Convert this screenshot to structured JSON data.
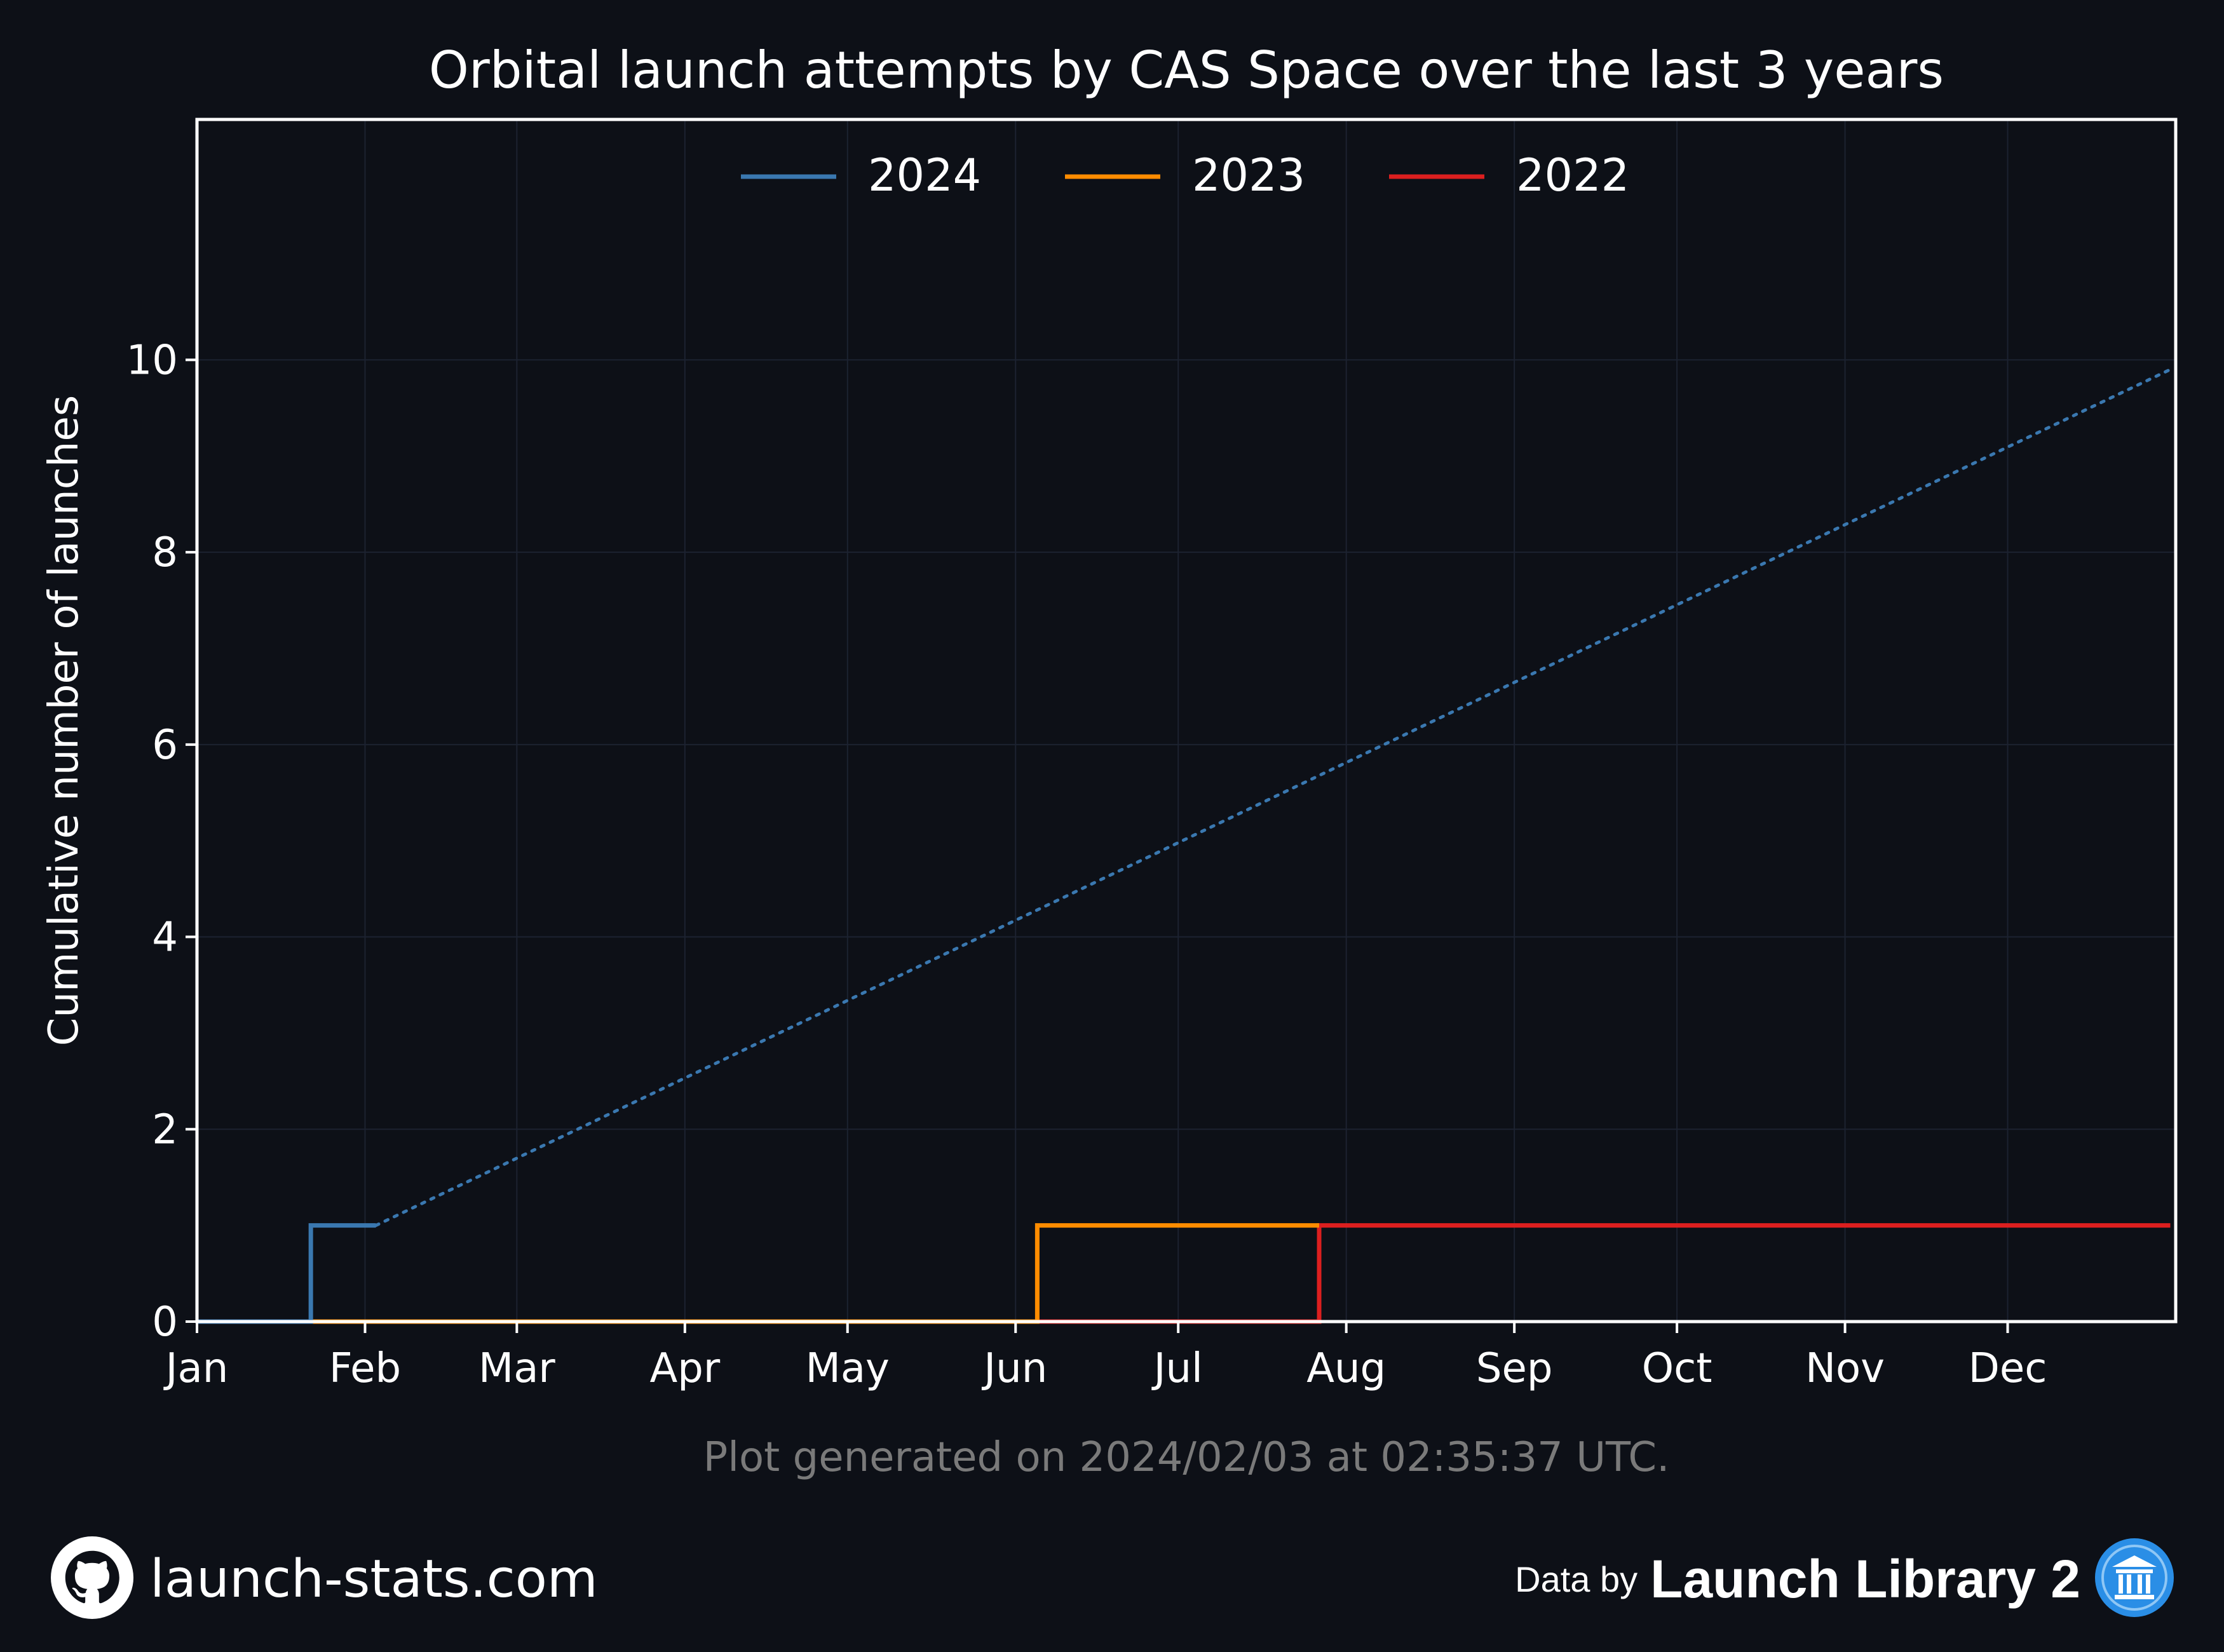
{
  "chart_data": {
    "type": "line",
    "title": "Orbital launch attempts by CAS Space over the last 3 years",
    "xlabel": "",
    "ylabel": "Cumulative number of launches",
    "x_ticks": [
      "Jan",
      "Feb",
      "Mar",
      "Apr",
      "May",
      "Jun",
      "Jul",
      "Aug",
      "Sep",
      "Oct",
      "Nov",
      "Dec"
    ],
    "y_ticks": [
      0,
      2,
      4,
      6,
      8,
      10
    ],
    "xlim": [
      "Jan 1",
      "Dec 31"
    ],
    "ylim": [
      0,
      12.5
    ],
    "grid": true,
    "legend_position": "top-center",
    "series": [
      {
        "name": "2024",
        "color": "#3a78b0",
        "style": "step",
        "points": [
          {
            "date": "Jan 1",
            "y": 0
          },
          {
            "date": "Jan 22",
            "y": 1
          },
          {
            "date": "Feb 3",
            "y": 1
          }
        ],
        "projection": {
          "style": "dotted",
          "points": [
            {
              "date": "Feb 3",
              "y": 1
            },
            {
              "date": "Dec 31",
              "y": 9.9
            }
          ]
        }
      },
      {
        "name": "2023",
        "color": "#ff8c00",
        "style": "step",
        "points": [
          {
            "date": "Jan 1",
            "y": 0
          },
          {
            "date": "Jun 5",
            "y": 1
          },
          {
            "date": "Jul 27",
            "y": 1
          }
        ]
      },
      {
        "name": "2022",
        "color": "#dc1f1f",
        "style": "step",
        "points": [
          {
            "date": "Jan 1",
            "y": 0
          },
          {
            "date": "Jul 27",
            "y": 1
          },
          {
            "date": "Dec 31",
            "y": 1
          }
        ]
      }
    ]
  },
  "footnote": "Plot generated on 2024/02/03 at 02:35:37 UTC.",
  "footer": {
    "site": "launch-stats.com",
    "data_by": "Data by",
    "source": "Launch Library 2",
    "site_icon": "github-icon",
    "source_icon": "launch-library-icon"
  },
  "colors": {
    "background": "#0d1017",
    "axes": "#ffffff",
    "grid": "#1c2230",
    "footnote": "#7a7a7a",
    "badge": "#2a8ee6"
  }
}
